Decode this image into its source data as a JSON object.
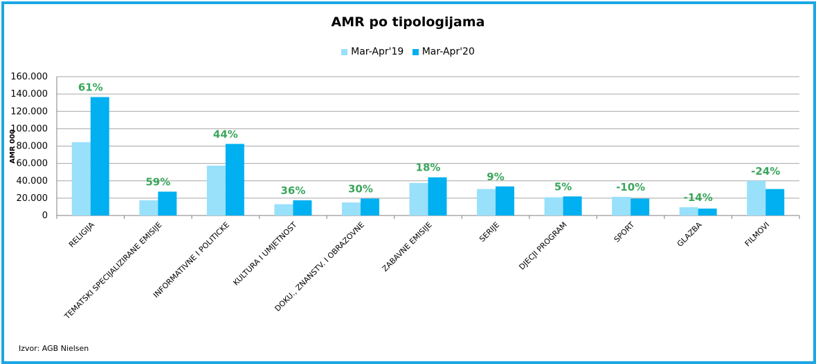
{
  "chart_data": {
    "type": "bar",
    "title": "AMR po tipologijama",
    "ylabel": "AMR 000",
    "ylim": [
      0,
      160000
    ],
    "yticks": [
      "0",
      "20.000",
      "40.000",
      "60.000",
      "80.000",
      "100.000",
      "120.000",
      "140.000",
      "160.000"
    ],
    "categories": [
      "RELIGIJA",
      "TEMATSKI SPECIJALIZIRANE EMISIJE",
      "INFORMATIVNE I POLITICKE",
      "KULTURA I UMJETNOST",
      "DOKU., ZNANSTV. I OBRAZOVNE",
      "ZABAVNE EMISIJE",
      "SERIJE",
      "DJECJI PROGRAM",
      "SPORT",
      "GLAZBA",
      "FILMOVI"
    ],
    "series": [
      {
        "name": "Mar-Apr'19",
        "color": "#99e0fb",
        "values": [
          84500,
          17500,
          57500,
          13000,
          15000,
          37500,
          30500,
          21000,
          21500,
          9500,
          40000
        ]
      },
      {
        "name": "Mar-Apr'20",
        "color": "#00b0f0",
        "values": [
          136500,
          27500,
          82500,
          17500,
          19500,
          44000,
          33500,
          22000,
          19500,
          8000,
          30500
        ]
      }
    ],
    "annotations": [
      "61%",
      "59%",
      "44%",
      "36%",
      "30%",
      "18%",
      "9%",
      "5%",
      "-10%",
      "-14%",
      "-24%"
    ],
    "annotation_color": "#3aa65b",
    "grid": true,
    "legend_position": "top"
  },
  "source": "Izvor: AGB Nielsen",
  "colors": {
    "frame": "#1aa7e4",
    "gridline": "#a6a6a6"
  }
}
